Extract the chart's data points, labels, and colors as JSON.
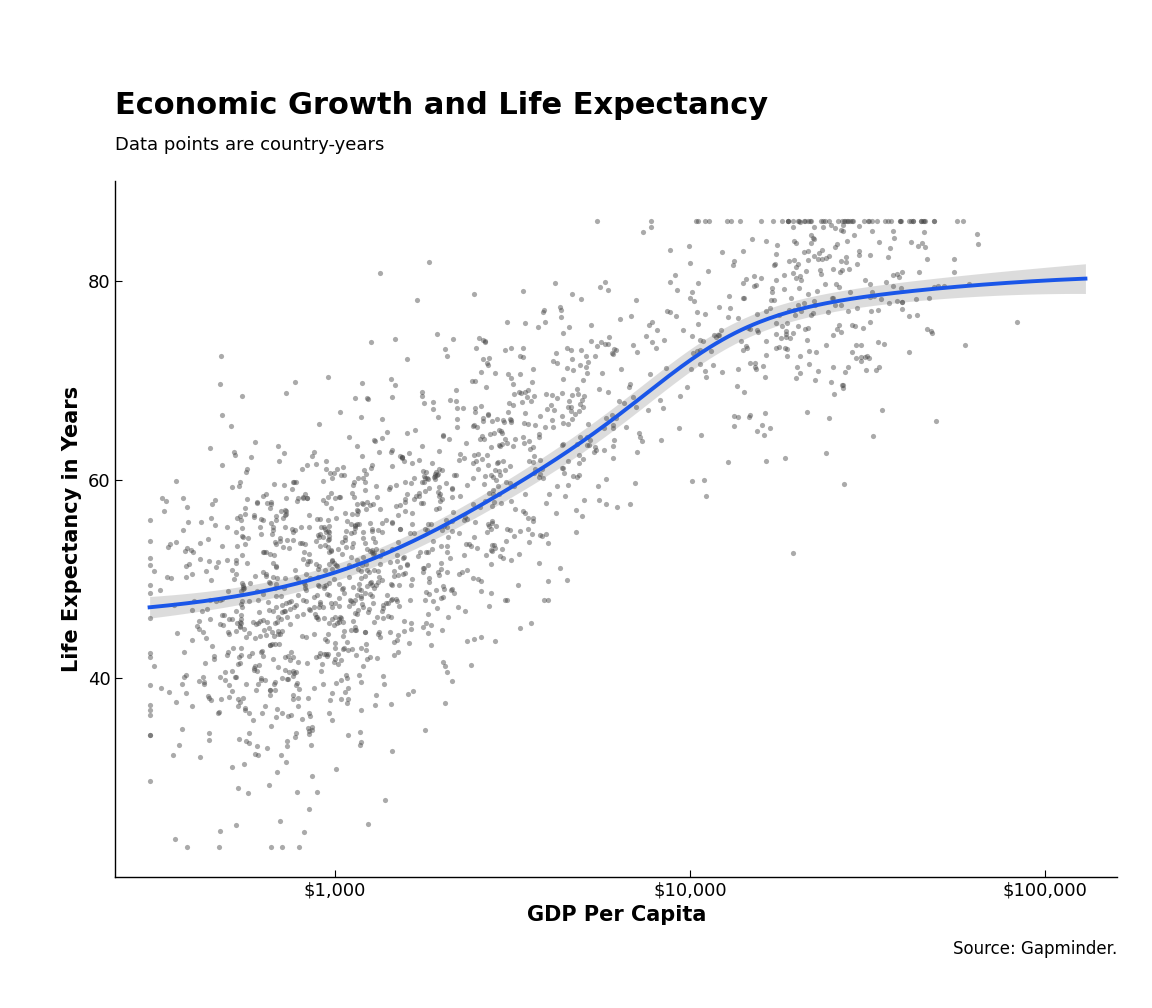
{
  "title": "Economic Growth and Life Expectancy",
  "subtitle": "Data points are country-years",
  "xlabel": "GDP Per Capita",
  "ylabel": "Life Expectancy in Years",
  "source": "Source: Gapminder.",
  "background_color": "#ffffff",
  "scatter_color": "#444444",
  "scatter_alpha": 0.45,
  "scatter_size": 14,
  "line_color": "#1a56e8",
  "line_width": 2.8,
  "ci_color": "#bbbbbb",
  "ci_alpha": 0.5,
  "xlim_log": [
    240,
    160000
  ],
  "ylim": [
    20,
    90
  ],
  "xticks": [
    1000,
    10000,
    100000
  ],
  "xtick_labels": [
    "$1,000",
    "$10,000",
    "$100,000"
  ],
  "yticks": [
    40,
    60,
    80
  ],
  "title_fontsize": 22,
  "subtitle_fontsize": 13,
  "label_fontsize": 15,
  "tick_fontsize": 13,
  "source_fontsize": 12
}
